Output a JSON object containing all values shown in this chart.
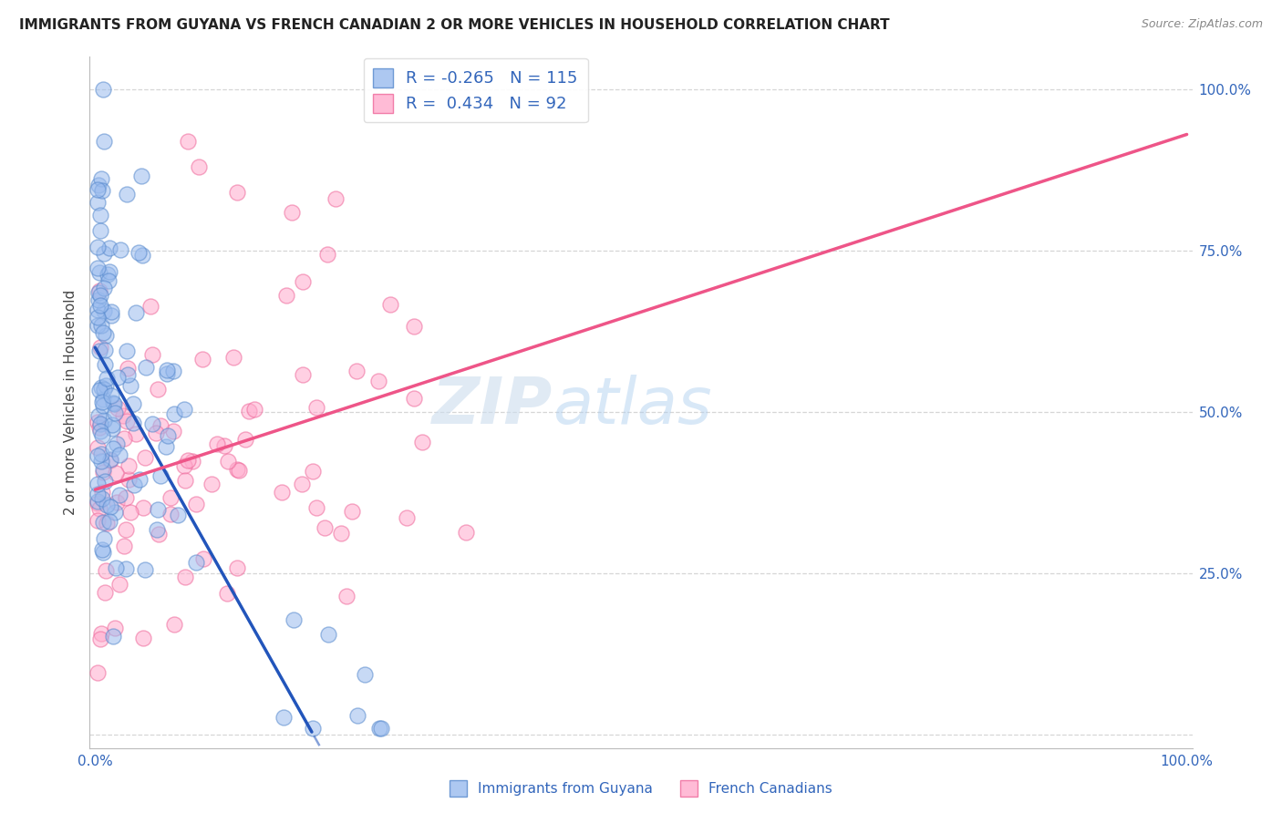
{
  "title": "IMMIGRANTS FROM GUYANA VS FRENCH CANADIAN 2 OR MORE VEHICLES IN HOUSEHOLD CORRELATION CHART",
  "source": "Source: ZipAtlas.com",
  "ylabel": "2 or more Vehicles in Household",
  "legend_label1": "Immigrants from Guyana",
  "legend_label2": "French Canadians",
  "R1": -0.265,
  "N1": 115,
  "R2": 0.434,
  "N2": 92,
  "blue_fill": "#99BBEE",
  "blue_edge": "#5588CC",
  "pink_fill": "#FFAACC",
  "pink_edge": "#EE6699",
  "blue_line": "#2255BB",
  "pink_line": "#EE5588",
  "watermark_zip": "ZIP",
  "watermark_atlas": "atlas",
  "background_color": "#FFFFFF",
  "grid_color": "#CCCCCC",
  "blue_intercept": 0.6,
  "blue_slope": -3.0,
  "pink_intercept": 0.38,
  "pink_slope": 0.55
}
